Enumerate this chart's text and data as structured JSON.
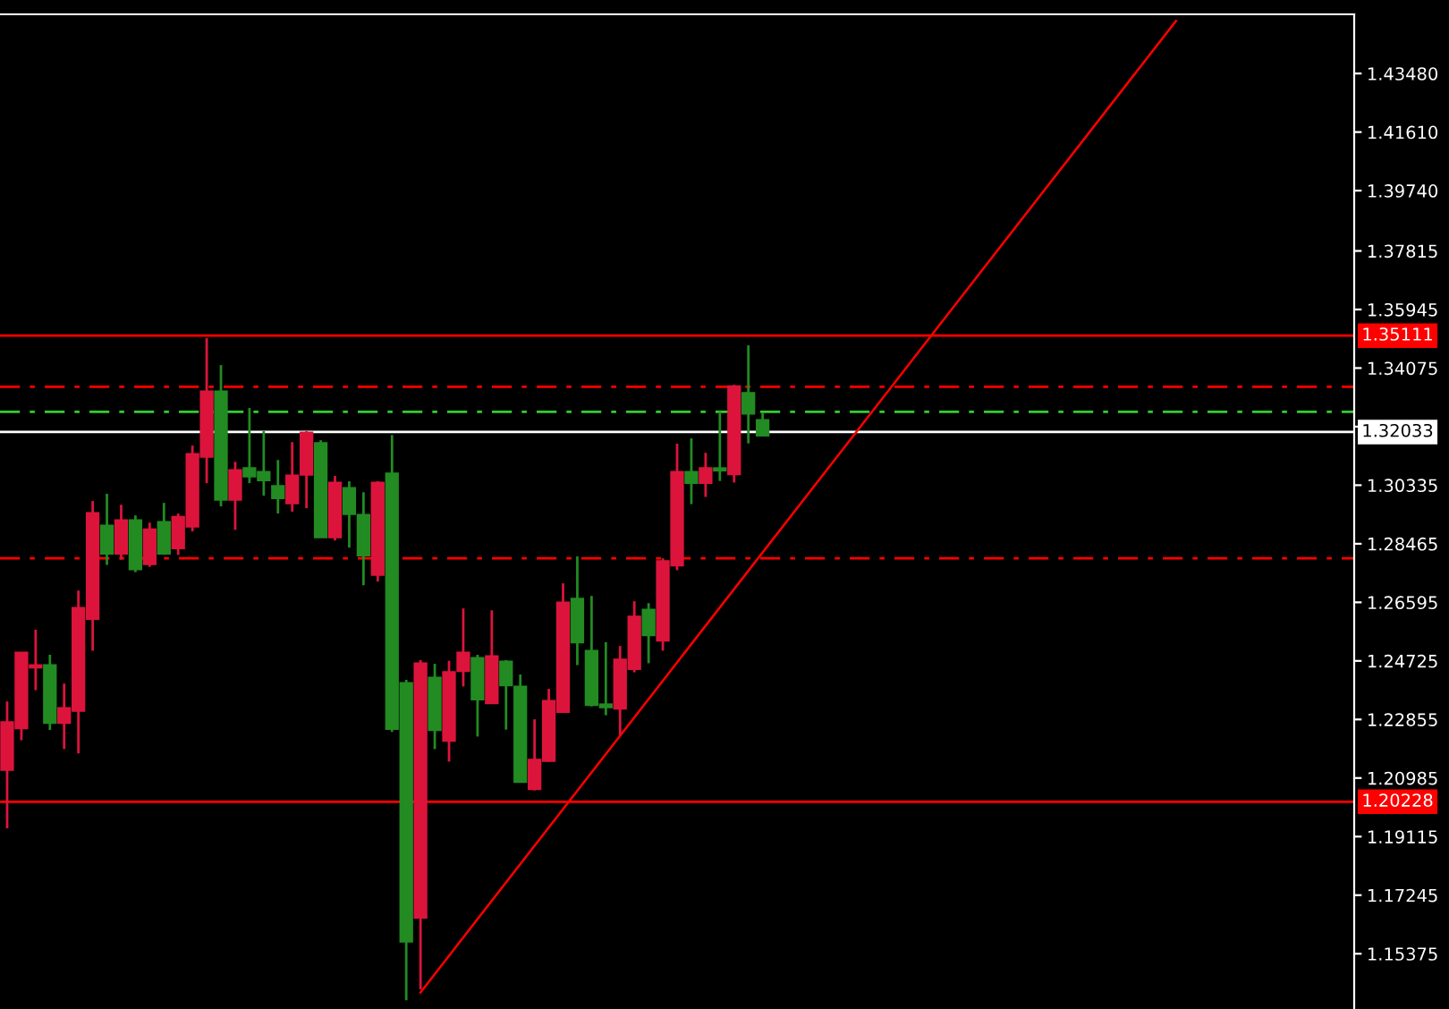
{
  "chart_data": {
    "type": "candlestick",
    "categories": [
      null,
      null,
      null,
      null,
      null,
      null,
      null,
      null,
      null,
      null,
      null,
      null,
      null,
      null,
      null,
      null,
      null,
      null,
      null,
      null,
      null,
      null,
      null,
      null,
      null,
      null,
      null,
      null,
      null,
      null,
      null,
      null,
      null,
      null,
      null,
      null,
      null,
      null,
      null,
      null,
      null,
      null,
      null,
      null,
      null,
      null,
      null,
      null,
      null,
      null,
      null,
      null,
      null,
      null,
      null,
      null,
      null,
      null,
      null,
      null,
      null,
      null,
      null,
      null,
      null,
      null,
      null,
      null,
      null,
      null,
      null,
      null,
      null,
      null,
      null,
      null,
      null,
      null,
      null,
      null,
      null,
      null,
      null,
      null,
      null,
      null,
      null,
      null,
      null,
      null,
      null,
      null,
      null,
      null,
      null
    ],
    "ohlc": [
      [
        1.2275,
        1.2343,
        1.1938,
        1.2126
      ],
      [
        1.2497,
        1.2497,
        1.2219,
        1.2259
      ],
      [
        1.2457,
        1.2572,
        1.2379,
        1.2453
      ],
      [
        1.2276,
        1.2492,
        1.2252,
        1.2457
      ],
      [
        1.232,
        1.24,
        1.2191,
        1.2276
      ],
      [
        1.264,
        1.2697,
        1.2177,
        1.2315
      ],
      [
        1.2943,
        1.2983,
        1.2505,
        1.2608
      ],
      [
        1.2817,
        1.3006,
        1.2779,
        1.2903
      ],
      [
        1.292,
        1.2971,
        1.2796,
        1.2817
      ],
      [
        1.2767,
        1.2937,
        1.2756,
        1.292
      ],
      [
        1.2891,
        1.2914,
        1.2773,
        1.2783
      ],
      [
        1.2817,
        1.2977,
        1.2811,
        1.2914
      ],
      [
        1.2931,
        1.2943,
        1.2811,
        1.2834
      ],
      [
        1.3131,
        1.316,
        1.2886,
        1.2903
      ],
      [
        1.3331,
        1.3503,
        1.304,
        1.3126
      ],
      [
        1.2989,
        1.3417,
        1.2966,
        1.3331
      ],
      [
        1.308,
        1.3108,
        1.2891,
        1.2989
      ],
      [
        1.3063,
        1.328,
        1.304,
        1.3086
      ],
      [
        1.3051,
        1.3206,
        1.3,
        1.3074
      ],
      [
        1.2994,
        1.3114,
        1.2943,
        1.3029
      ],
      [
        1.3063,
        1.3171,
        1.2949,
        1.2977
      ],
      [
        1.32,
        1.3206,
        1.296,
        1.3069
      ],
      [
        1.2869,
        1.3177,
        1.2869,
        1.3166
      ],
      [
        1.304,
        1.3063,
        1.2857,
        1.2869
      ],
      [
        1.2943,
        1.3046,
        1.2834,
        1.3023
      ],
      [
        1.2811,
        1.3011,
        1.2714,
        1.2937
      ],
      [
        1.304,
        1.3046,
        1.2726,
        1.2749
      ],
      [
        1.2257,
        1.3194,
        1.2246,
        1.3069
      ],
      [
        1.1578,
        1.2412,
        1.1389,
        1.24
      ],
      [
        1.2463,
        1.2475,
        1.1424,
        1.1654
      ],
      [
        1.2253,
        1.2463,
        1.2191,
        1.2417
      ],
      [
        1.2435,
        1.2473,
        1.2151,
        1.2219
      ],
      [
        1.2497,
        1.264,
        1.2391,
        1.2442
      ],
      [
        1.2351,
        1.2492,
        1.2231,
        1.248
      ],
      [
        1.2486,
        1.2634,
        1.2339,
        1.2339
      ],
      [
        1.2396,
        1.2475,
        1.2253,
        1.2469
      ],
      [
        1.2088,
        1.2429,
        1.2088,
        1.2389
      ],
      [
        1.2155,
        1.2286,
        1.2059,
        1.2065
      ],
      [
        1.2343,
        1.2383,
        1.2151,
        1.2155
      ],
      [
        1.2657,
        1.272,
        1.2311,
        1.2311
      ],
      [
        1.2533,
        1.2806,
        1.2459,
        1.2669
      ],
      [
        1.2333,
        1.268,
        1.2327,
        1.2503
      ],
      [
        1.2326,
        1.2532,
        1.2299,
        1.2332
      ],
      [
        1.2475,
        1.252,
        1.2236,
        1.2322
      ],
      [
        1.2612,
        1.2663,
        1.2436,
        1.2448
      ],
      [
        1.2556,
        1.2657,
        1.2465,
        1.2634
      ],
      [
        1.2789,
        1.28,
        1.2505,
        1.2539
      ],
      [
        1.3074,
        1.3166,
        1.2762,
        1.2779
      ],
      [
        1.3042,
        1.3183,
        1.2973,
        1.3074
      ],
      [
        1.3086,
        1.3137,
        1.2996,
        1.3042
      ],
      [
        1.3082,
        1.3268,
        1.3047,
        1.3086
      ],
      [
        1.3348,
        1.3354,
        1.3042,
        1.307
      ],
      [
        1.3264,
        1.348,
        1.3167,
        1.3326
      ],
      [
        1.3194,
        1.3264,
        1.319,
        1.324
      ],
      null,
      null,
      null,
      null,
      null,
      null,
      null,
      null,
      null,
      null,
      null,
      null,
      null,
      null,
      null,
      null,
      null,
      null,
      null,
      null,
      null,
      null,
      null,
      null,
      null,
      null,
      null,
      null,
      null,
      null,
      null,
      null,
      null,
      null,
      null,
      null,
      null,
      null,
      null,
      null,
      null
    ],
    "colors": [
      "#dc143c",
      "#dc143c",
      "#dc143c",
      "#228b22",
      "#dc143c",
      "#dc143c",
      "#dc143c",
      "#228b22",
      "#dc143c",
      "#228b22",
      "#dc143c",
      "#228b22",
      "#dc143c",
      "#dc143c",
      "#dc143c",
      "#228b22",
      "#dc143c",
      "#228b22",
      "#228b22",
      "#228b22",
      "#dc143c",
      "#dc143c",
      "#228b22",
      "#dc143c",
      "#228b22",
      "#228b22",
      "#dc143c",
      "#228b22",
      "#228b22",
      "#dc143c",
      "#228b22",
      "#dc143c",
      "#dc143c",
      "#228b22",
      "#dc143c",
      "#228b22",
      "#228b22",
      "#dc143c",
      "#dc143c",
      "#dc143c",
      "#228b22",
      "#228b22",
      "#228b22",
      "#dc143c",
      "#dc143c",
      "#228b22",
      "#dc143c",
      "#dc143c",
      "#228b22",
      "#dc143c",
      "#228b22",
      "#dc143c",
      "#228b22",
      "#228b22",
      null,
      null,
      null,
      null,
      null,
      null,
      null,
      null,
      null,
      null,
      null,
      null,
      null,
      null,
      null,
      null,
      null,
      null,
      null,
      null,
      null,
      null,
      null,
      null,
      null,
      null,
      null,
      null,
      null,
      null,
      null,
      null,
      null,
      null,
      null,
      null,
      null,
      null,
      null,
      null,
      null
    ],
    "series": [
      {
        "type": "line",
        "color": "#ff0000",
        "values": [
          null,
          null,
          null,
          null,
          null,
          null,
          null,
          null,
          null,
          null,
          null,
          null,
          null,
          null,
          null,
          null,
          null,
          null,
          null,
          null,
          null,
          null,
          null,
          null,
          null,
          null,
          null,
          null,
          null,
          1.1414,
          null,
          null,
          null,
          null,
          null,
          null,
          null,
          null,
          null,
          null,
          null,
          null,
          null,
          null,
          null,
          null,
          null,
          null,
          null,
          null,
          null,
          null,
          null,
          null,
          null,
          null,
          null,
          null,
          null,
          null,
          null,
          null,
          null,
          null,
          null,
          null,
          null,
          null,
          null,
          null,
          null,
          null,
          null,
          null,
          null,
          null,
          null,
          null,
          null,
          null,
          null,
          null,
          1.4516,
          null,
          null,
          null,
          null,
          null,
          null,
          null,
          null,
          null,
          null,
          null,
          null
        ]
      }
    ],
    "ylim": [
      1.1361,
      1.4537
    ],
    "yticks": [
      {
        "value": 1.4348,
        "label": "1.43480"
      },
      {
        "value": 1.4161,
        "label": "1.41610"
      },
      {
        "value": 1.3974,
        "label": "1.39740"
      },
      {
        "value": 1.37815,
        "label": "1.37815"
      },
      {
        "value": 1.35945,
        "label": "1.35945"
      },
      {
        "value": 1.34075,
        "label": "1.34075"
      },
      {
        "value": 1.32205,
        "label": null
      },
      {
        "value": 1.30335,
        "label": "1.30335"
      },
      {
        "value": 1.28465,
        "label": "1.28465"
      },
      {
        "value": 1.26595,
        "label": "1.26595"
      },
      {
        "value": 1.24725,
        "label": "1.24725"
      },
      {
        "value": 1.22855,
        "label": "1.22855"
      },
      {
        "value": 1.20985,
        "label": "1.20985"
      },
      {
        "value": 1.19115,
        "label": "1.19115"
      },
      {
        "value": 1.17245,
        "label": "1.17245"
      },
      {
        "value": 1.15375,
        "label": "1.15375"
      }
    ],
    "tick_labels": "y",
    "grid": false,
    "ref_lines": [
      {
        "axis": "y",
        "value": 1.35111,
        "label": "1.35111",
        "color": "#ff0000",
        "line_style": "solid"
      },
      {
        "axis": "y",
        "value": 1.20228,
        "label": "1.20228",
        "color": "#ff0000",
        "line_style": "solid"
      },
      {
        "axis": "y",
        "value": 1.32033,
        "label": "1.32033",
        "color": "#ffffff",
        "line_style": "solid"
      },
      {
        "axis": "y",
        "value": 1.3348,
        "color": "#ff0000",
        "line_style": "dashdot"
      },
      {
        "axis": "y",
        "value": 1.3268,
        "color": "#32cd32",
        "line_style": "dashdot"
      },
      {
        "axis": "y",
        "value": 1.28,
        "color": "#ff0000",
        "line_style": "dashdot"
      }
    ]
  }
}
